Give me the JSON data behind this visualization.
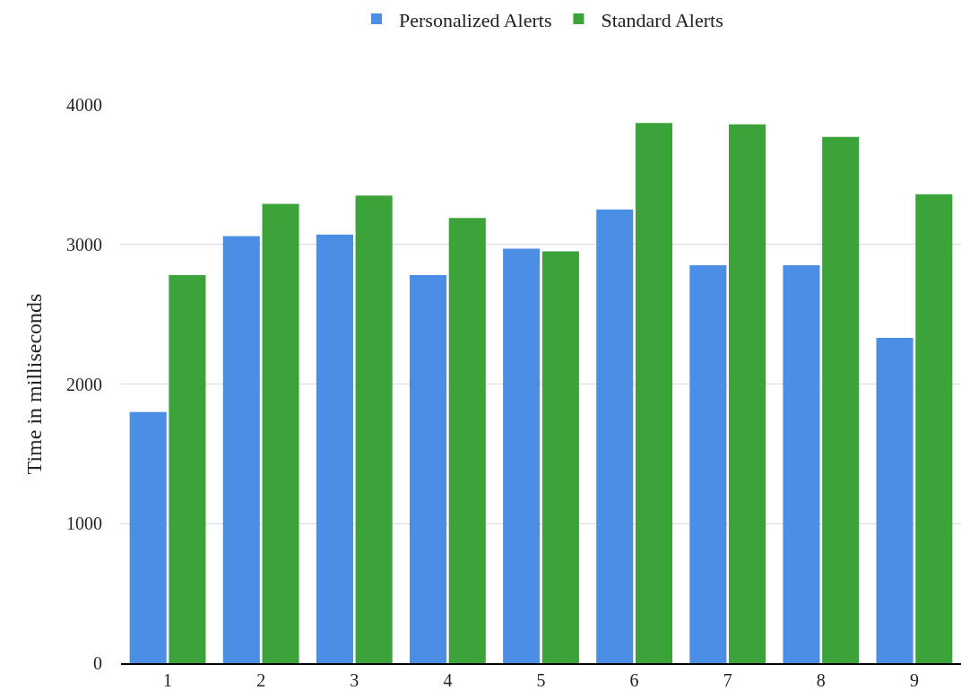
{
  "chart_data": {
    "type": "bar",
    "ylabel": "Time in milliseconds",
    "categories": [
      "1",
      "2",
      "3",
      "4",
      "5",
      "6",
      "7",
      "8",
      "9"
    ],
    "series": [
      {
        "name": "Personalized Alerts",
        "color": "#4a8ee6",
        "values": [
          1800,
          3060,
          3070,
          2780,
          2970,
          3250,
          2850,
          2850,
          2330
        ]
      },
      {
        "name": "Standard Alerts",
        "color": "#3ca33a",
        "values": [
          2780,
          3290,
          3350,
          3190,
          2950,
          3870,
          3860,
          3770,
          3360
        ]
      }
    ],
    "ylim": [
      0,
      4000
    ],
    "yticks": [
      0,
      1000,
      2000,
      3000,
      4000
    ],
    "grid": "y",
    "legend": "top"
  }
}
